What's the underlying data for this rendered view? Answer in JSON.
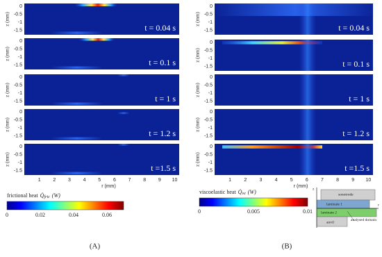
{
  "figure": {
    "z_axis_label": "z (mm)",
    "z_ticks": [
      "0",
      "-0.5",
      "-1",
      "-1.5"
    ],
    "r_axis_label": "r (mm)",
    "r_ticks": [
      "1",
      "2",
      "3",
      "4",
      "5",
      "6",
      "7",
      "8",
      "9",
      "10"
    ],
    "columns": [
      {
        "label": "(A)",
        "panels": [
          "t = 0.04 s",
          "t = 0.1 s",
          "t = 1 s",
          "t = 1.2 s",
          "t =1.5 s"
        ],
        "colorbar": {
          "text": "frictional heat",
          "symbol": "Q̇",
          "subscript": "fric",
          "unit": "(W)",
          "ticks": [
            "0",
            "0.02",
            "0.04",
            "0.06"
          ]
        }
      },
      {
        "label": "(B)",
        "panels": [
          "t = 0.04 s",
          "t = 0.1 s",
          "t = 1 s",
          "t = 1.2 s",
          "t =1.5 s"
        ],
        "colorbar": {
          "text": "viscoelastic heat",
          "symbol": "Q̇",
          "subscript": "ve",
          "unit": "(W)",
          "ticks": [
            "0",
            "0.005",
            "0.01"
          ]
        }
      }
    ],
    "diagram": {
      "sonotrode": "sonotrode",
      "laminate1": "laminate 1",
      "laminate2": "laminate 2",
      "anvil": "anvil",
      "domain": "analysed domain",
      "z": "z",
      "r": "r"
    }
  }
}
